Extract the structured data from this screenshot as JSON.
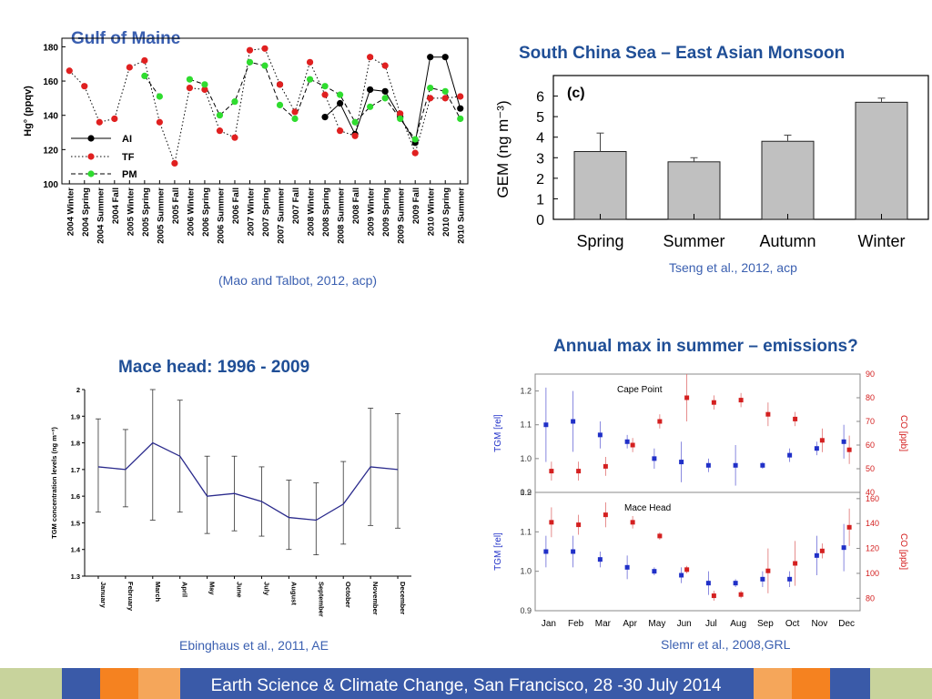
{
  "slide": {
    "footer": "Earth Science & Climate Change, San Francisco, 28 -30 July 2014",
    "colors": {
      "title_blue": "#1f4e96",
      "cite_blue": "#3a5fb0",
      "green_bar": "#c8d39c",
      "blue_block": "#3a5aa8",
      "orange_block": "#f58220"
    }
  },
  "panels": {
    "gulf": {
      "title": "Gulf of Maine",
      "citation": "(Mao and Talbot, 2012, acp)"
    },
    "scs": {
      "title": "South China Sea – East Asian Monsoon",
      "citation": "Tseng et al., 2012, acp"
    },
    "mace": {
      "title": "Mace head: 1996 - 2009",
      "citation": "Ebinghaus et al., 2011, AE"
    },
    "cape": {
      "title": "Annual max in summer – emissions?",
      "citation": "Slemr et al., 2008,GRL"
    }
  },
  "chart_data": [
    {
      "id": "gulf",
      "type": "line",
      "ylabel": "Hg° (ppqv)",
      "ylim": [
        100,
        185
      ],
      "yticks": [
        100,
        120,
        140,
        160,
        180
      ],
      "categories": [
        "2004 Winter",
        "2004 Spring",
        "2004 Summer",
        "2004 Fall",
        "2005 Winter",
        "2005 Spring",
        "2005 Summer",
        "2005 Fall",
        "2006 Winter",
        "2006 Spring",
        "2006 Summer",
        "2006 Fall",
        "2007 Winter",
        "2007 Spring",
        "2007 Summer",
        "2007 Fall",
        "2008 Winter",
        "2008 Spring",
        "2008 Summer",
        "2008 Fall",
        "2009 Winter",
        "2009 Spring",
        "2009 Summer",
        "2009 Fall",
        "2010 Winter",
        "2010 Spring",
        "2010 Summer"
      ],
      "series": [
        {
          "name": "AI",
          "color": "#000000",
          "dash": "solid",
          "values": [
            null,
            null,
            null,
            null,
            null,
            null,
            null,
            null,
            null,
            null,
            null,
            null,
            null,
            null,
            158,
            null,
            null,
            139,
            147,
            129,
            155,
            154,
            139,
            124,
            174,
            174,
            144
          ]
        },
        {
          "name": "TF",
          "color": "#e02020",
          "dash": "dotted",
          "values": [
            166,
            157,
            136,
            138,
            168,
            172,
            136,
            112,
            156,
            155,
            131,
            127,
            178,
            179,
            158,
            142,
            171,
            152,
            131,
            128,
            174,
            169,
            141,
            118,
            150,
            150,
            151
          ]
        },
        {
          "name": "PM",
          "color": "#2fdc2f",
          "dash": "dashed",
          "values": [
            null,
            null,
            null,
            null,
            null,
            163,
            151,
            null,
            161,
            158,
            140,
            148,
            171,
            169,
            146,
            138,
            161,
            157,
            152,
            136,
            145,
            150,
            138,
            126,
            156,
            154,
            138
          ]
        }
      ]
    },
    {
      "id": "scs",
      "type": "bar",
      "panel_label": "(c)",
      "ylabel": "GEM (ng m⁻³)",
      "ylim": [
        0,
        7
      ],
      "yticks": [
        0,
        1,
        2,
        3,
        4,
        5,
        6
      ],
      "categories": [
        "Spring",
        "Summer",
        "Autumn",
        "Winter"
      ],
      "values": [
        3.3,
        2.8,
        3.8,
        5.7
      ],
      "errors": [
        0.9,
        0.2,
        0.3,
        0.2
      ]
    },
    {
      "id": "mace",
      "type": "line",
      "ylabel": "TGM concentration levels (ng m⁻³)",
      "ylim": [
        1.3,
        2.0
      ],
      "yticks": [
        1.3,
        1.4,
        1.5,
        1.6,
        1.7,
        1.8,
        1.9,
        2.0
      ],
      "categories": [
        "January",
        "February",
        "March",
        "April",
        "May",
        "June",
        "July",
        "August",
        "September",
        "October",
        "November",
        "December"
      ],
      "values": [
        1.71,
        1.7,
        1.8,
        1.75,
        1.6,
        1.61,
        1.58,
        1.52,
        1.51,
        1.57,
        1.71,
        1.7
      ],
      "err_low": [
        1.54,
        1.56,
        1.51,
        1.54,
        1.46,
        1.47,
        1.45,
        1.4,
        1.38,
        1.42,
        1.49,
        1.48
      ],
      "err_high": [
        1.89,
        1.85,
        2.0,
        1.96,
        1.75,
        1.75,
        1.71,
        1.66,
        1.65,
        1.73,
        1.93,
        1.91
      ]
    },
    {
      "id": "cape",
      "type": "scatter",
      "categories": [
        "Jan",
        "Feb",
        "Mar",
        "Apr",
        "May",
        "Jun",
        "Jul",
        "Aug",
        "Sep",
        "Oct",
        "Nov",
        "Dec"
      ],
      "subplots": [
        {
          "label": "Cape Point",
          "left_label": "TGM [rel]",
          "left_ylim": [
            0.9,
            1.25
          ],
          "left_ticks": [
            0.9,
            1.0,
            1.1,
            1.2
          ],
          "right_label": "CO [ppb]",
          "right_ylim": [
            40,
            90
          ],
          "right_ticks": [
            40,
            50,
            60,
            70,
            80,
            90
          ],
          "tgm": [
            1.1,
            1.11,
            1.07,
            1.05,
            1.0,
            0.99,
            0.98,
            0.98,
            0.98,
            1.01,
            1.03,
            1.05
          ],
          "tgm_err": [
            0.11,
            0.09,
            0.04,
            0.02,
            0.03,
            0.06,
            0.02,
            0.06,
            0.01,
            0.02,
            0.02,
            0.05
          ],
          "co": [
            49,
            49,
            51,
            60,
            70,
            80,
            78,
            79,
            73,
            71,
            62,
            58
          ],
          "co_err": [
            4,
            4,
            4,
            3,
            3,
            10,
            3,
            3,
            5,
            3,
            5,
            6
          ]
        },
        {
          "label": "Mace Head",
          "left_label": "TGM [rel]",
          "left_ylim": [
            0.9,
            1.2
          ],
          "left_ticks": [
            0.9,
            1.0,
            1.1,
            1.2
          ],
          "right_label": "CO [ppb]",
          "right_ylim": [
            70,
            165
          ],
          "right_ticks": [
            80,
            100,
            120,
            140,
            160
          ],
          "tgm": [
            1.05,
            1.05,
            1.03,
            1.01,
            1.0,
            0.99,
            0.97,
            0.97,
            0.98,
            0.98,
            1.04,
            1.06
          ],
          "tgm_err": [
            0.04,
            0.04,
            0.02,
            0.03,
            0.01,
            0.02,
            0.03,
            0.01,
            0.02,
            0.02,
            0.05,
            0.06
          ],
          "co": [
            141,
            139,
            147,
            141,
            130,
            103,
            82,
            83,
            102,
            108,
            118,
            137
          ],
          "co_err": [
            12,
            8,
            10,
            5,
            3,
            3,
            4,
            3,
            18,
            18,
            6,
            15
          ]
        }
      ]
    }
  ]
}
